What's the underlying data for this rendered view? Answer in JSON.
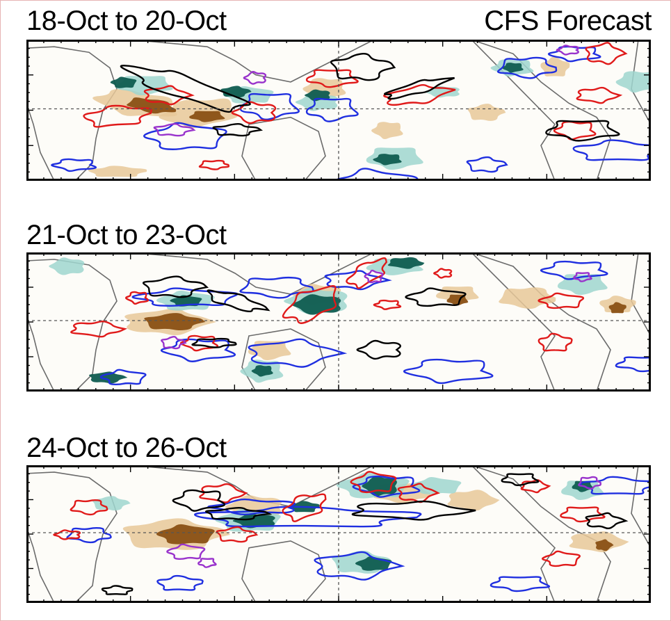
{
  "header": {
    "model_label": "CFS Forecast"
  },
  "panels": [
    {
      "period_label": "18-Oct to 20-Oct"
    },
    {
      "period_label": "21-Oct to 23-Oct"
    },
    {
      "period_label": "24-Oct to 26-Oct"
    }
  ],
  "colors": {
    "wet_anomaly": "#0f5c50",
    "wet_light": "#9fd6cf",
    "dry_anomaly": "#8a5014",
    "dry_light": "#e8c899",
    "contour_red": "#e01a1a",
    "contour_blue": "#1f2fe0",
    "contour_black": "#000000",
    "contour_purple": "#9933cc",
    "coastline": "#6b6b6b"
  }
}
